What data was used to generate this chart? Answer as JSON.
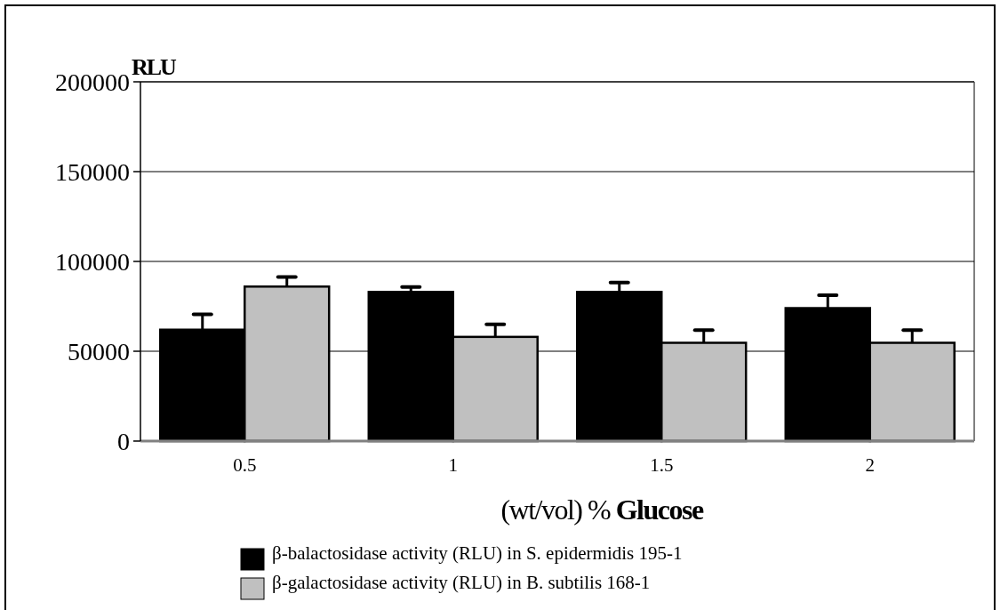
{
  "chart_data": {
    "type": "bar",
    "ylabel": "RLU",
    "xlabel": "(wt/vol) % Glucose",
    "categories": [
      "0.5",
      "1",
      "1.5",
      "2"
    ],
    "series": [
      {
        "name": "β-balactosidase activity (RLU) in S. epidermidis 195-1",
        "color": "#000000",
        "values": [
          62000,
          83000,
          83000,
          74000
        ],
        "errors": [
          [
            62000,
            70500
          ],
          [
            83000,
            85800
          ],
          [
            83000,
            88200
          ],
          [
            74000,
            81200
          ]
        ]
      },
      {
        "name": "β-galactosidase activity (RLU) in B. subtilis 168-1",
        "color": "#c0c0c0",
        "values": [
          86000,
          58000,
          54700,
          54700
        ],
        "errors": [
          [
            86000,
            91300
          ],
          [
            58000,
            65000
          ],
          [
            54700,
            61800
          ],
          [
            54700,
            61800
          ]
        ]
      }
    ],
    "ylim": [
      0,
      200000
    ],
    "yticks": [
      0,
      50000,
      100000,
      150000,
      200000
    ],
    "grid": "y",
    "legend": "bottom"
  }
}
